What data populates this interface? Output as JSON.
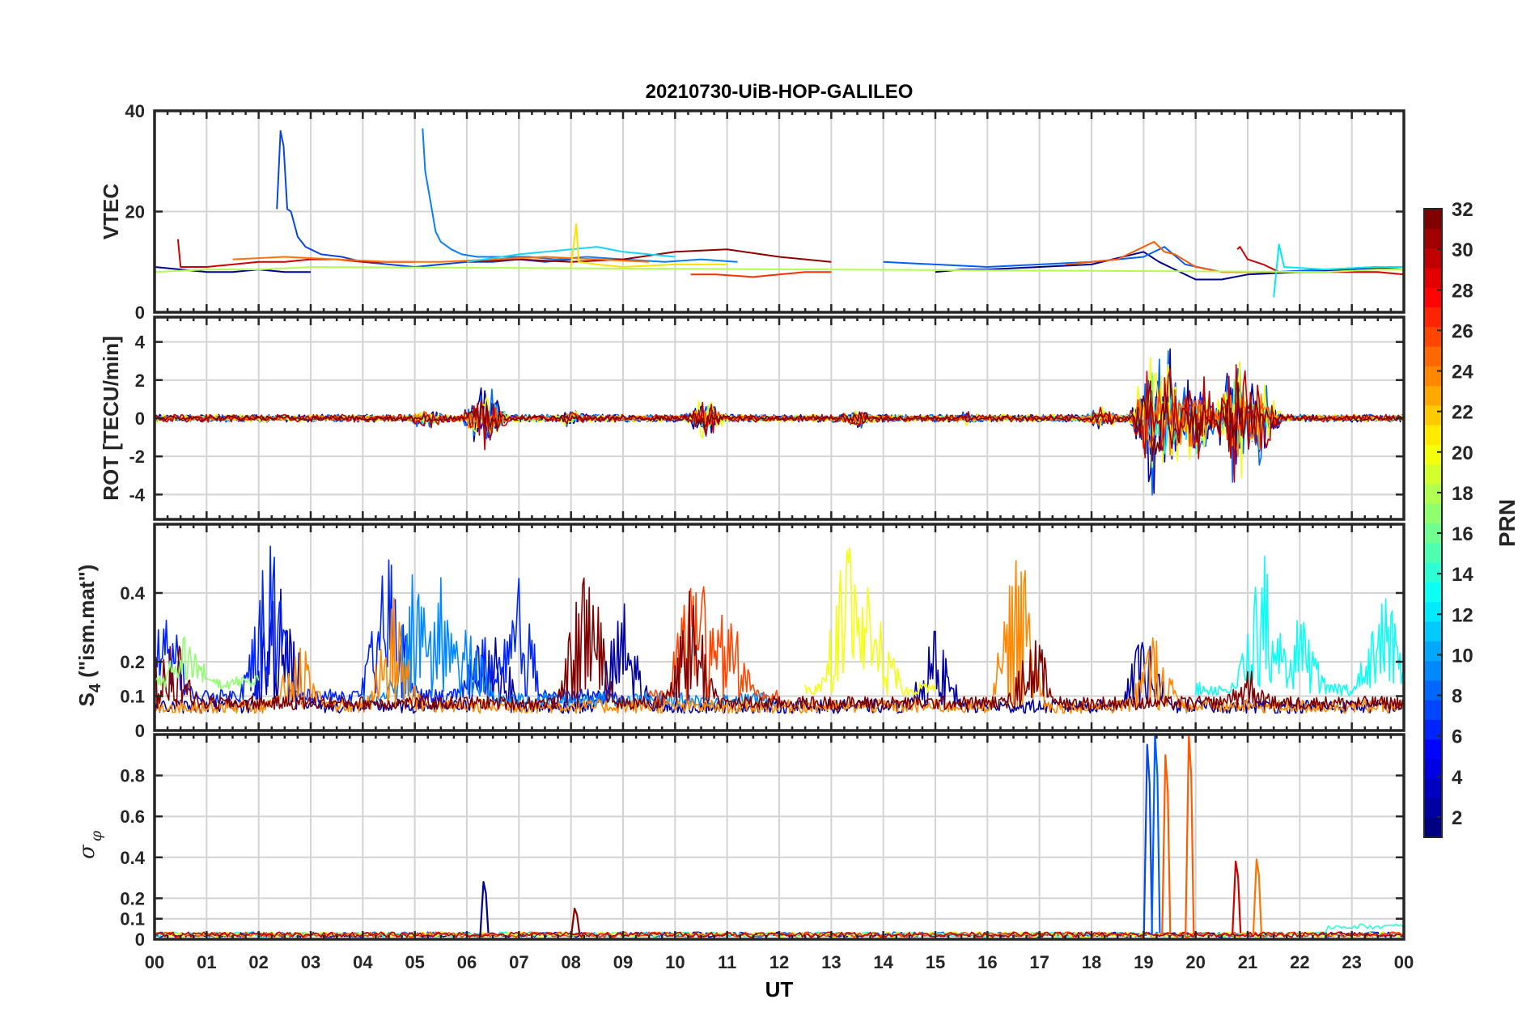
{
  "chart_data": {
    "type": "line",
    "title": "20210730-UiB-HOP-GALILEO",
    "xlabel": "UT",
    "xlim": [
      0,
      24
    ],
    "xtick_labels": [
      "00",
      "01",
      "02",
      "03",
      "04",
      "05",
      "06",
      "07",
      "08",
      "09",
      "10",
      "11",
      "12",
      "13",
      "14",
      "15",
      "16",
      "17",
      "18",
      "19",
      "20",
      "21",
      "22",
      "23",
      "00"
    ],
    "colorbar": {
      "label": "PRN",
      "colormap": "jet",
      "range": [
        1,
        32
      ],
      "tick_values": [
        2,
        4,
        6,
        8,
        10,
        12,
        14,
        16,
        18,
        20,
        22,
        24,
        26,
        28,
        30,
        32
      ],
      "tick_labels": [
        "2",
        "4",
        "6",
        "8",
        "10",
        "12",
        "14",
        "16",
        "18",
        "20",
        "22",
        "24",
        "26",
        "28",
        "30",
        "32"
      ]
    },
    "panels": [
      {
        "id": "vtec",
        "ylabel": "VTEC",
        "ylim": [
          0,
          40
        ],
        "ytick_values": [
          0,
          20,
          40
        ],
        "ytick_labels": [
          "0",
          "20",
          "40"
        ],
        "grid": true,
        "series": [
          {
            "prn": 4,
            "color": "#0a46e0",
            "points": [
              [
                2.35,
                20.5
              ],
              [
                2.42,
                36
              ],
              [
                2.48,
                33
              ],
              [
                2.55,
                20.5
              ],
              [
                2.62,
                20
              ],
              [
                2.75,
                15
              ],
              [
                2.9,
                13
              ],
              [
                3.2,
                11.5
              ],
              [
                3.6,
                11
              ],
              [
                4.0,
                10
              ],
              [
                4.5,
                9.5
              ],
              [
                5.0,
                9
              ],
              [
                5.5,
                9.5
              ],
              [
                6.0,
                10
              ],
              [
                6.5,
                10
              ],
              [
                7.0,
                10.5
              ],
              [
                7.5,
                10
              ],
              [
                8.0,
                10.5
              ]
            ]
          },
          {
            "prn": 8,
            "color": "#0a7ef5",
            "points": [
              [
                5.15,
                36.5
              ],
              [
                5.2,
                28
              ],
              [
                5.3,
                22
              ],
              [
                5.4,
                16
              ],
              [
                5.5,
                14
              ],
              [
                5.7,
                12.5
              ],
              [
                5.9,
                11.5
              ],
              [
                6.2,
                11
              ],
              [
                6.7,
                11
              ],
              [
                7.2,
                11
              ],
              [
                7.7,
                10.5
              ],
              [
                8.3,
                11
              ],
              [
                9.0,
                10.5
              ],
              [
                9.8,
                10
              ],
              [
                10.5,
                10.5
              ],
              [
                11.2,
                10
              ]
            ]
          },
          {
            "prn": 2,
            "color": "#00008f",
            "points": [
              [
                0.0,
                9
              ],
              [
                0.5,
                8.5
              ],
              [
                1.0,
                8
              ],
              [
                1.5,
                8
              ],
              [
                2.0,
                8.5
              ],
              [
                2.5,
                8
              ],
              [
                3.0,
                8
              ]
            ]
          },
          {
            "prn": 30,
            "color": "#cf0000",
            "points": [
              [
                0.45,
                14.5
              ],
              [
                0.5,
                9
              ],
              [
                1.0,
                9
              ],
              [
                1.5,
                9.5
              ],
              [
                2.0,
                10
              ],
              [
                2.5,
                10
              ],
              [
                3.0,
                10.5
              ],
              [
                3.5,
                10.5
              ],
              [
                4.0,
                10
              ],
              [
                4.5,
                10
              ],
              [
                5.0,
                10
              ]
            ]
          },
          {
            "prn": 32,
            "color": "#8f0000",
            "points": [
              [
                6.0,
                10
              ],
              [
                7.0,
                10.5
              ],
              [
                8.0,
                10
              ],
              [
                9.0,
                10.5
              ],
              [
                10.0,
                12
              ],
              [
                11.0,
                12.5
              ],
              [
                12.0,
                11
              ],
              [
                13.0,
                10
              ]
            ]
          },
          {
            "prn": 24,
            "color": "#ff7400",
            "points": [
              [
                1.5,
                10.5
              ],
              [
                2.5,
                11
              ],
              [
                3.5,
                10.5
              ],
              [
                4.5,
                10
              ],
              [
                5.5,
                10
              ],
              [
                6.5,
                10.5
              ],
              [
                7.5,
                11
              ],
              [
                8.5,
                10.5
              ],
              [
                9.5,
                10
              ]
            ]
          },
          {
            "prn": 12,
            "color": "#18d4ff",
            "points": [
              [
                6.0,
                10
              ],
              [
                7.0,
                11.5
              ],
              [
                8.0,
                12.5
              ],
              [
                8.5,
                13
              ],
              [
                9.0,
                12
              ],
              [
                10.0,
                11
              ]
            ]
          },
          {
            "prn": 20,
            "color": "#ffe000",
            "points": [
              [
                8.0,
                9
              ],
              [
                8.1,
                17.5
              ],
              [
                8.15,
                10
              ],
              [
                8.5,
                9.5
              ],
              [
                9.0,
                9
              ],
              [
                10.0,
                9.5
              ],
              [
                11.0,
                9.5
              ]
            ]
          },
          {
            "prn": 28,
            "color": "#ff3000",
            "points": [
              [
                10.3,
                7.5
              ],
              [
                10.8,
                7.5
              ],
              [
                11.5,
                7
              ],
              [
                12.0,
                7.5
              ],
              [
                12.5,
                8
              ],
              [
                13.0,
                8
              ]
            ]
          },
          {
            "prn": 2,
            "color": "#00008f",
            "points": [
              [
                15.0,
                8
              ],
              [
                15.5,
                8.5
              ],
              [
                16.0,
                8.5
              ],
              [
                17.0,
                9
              ],
              [
                18.0,
                9.5
              ],
              [
                19.0,
                12
              ],
              [
                19.3,
                10
              ],
              [
                19.6,
                8.5
              ],
              [
                20.0,
                6.5
              ],
              [
                20.5,
                6.5
              ],
              [
                21.0,
                7.5
              ],
              [
                22.0,
                8
              ],
              [
                23.0,
                8.5
              ],
              [
                24.0,
                9
              ]
            ]
          },
          {
            "prn": 6,
            "color": "#0060ff",
            "points": [
              [
                14.0,
                10
              ],
              [
                15.0,
                9.5
              ],
              [
                16.0,
                9
              ],
              [
                17.0,
                9.5
              ],
              [
                18.0,
                10
              ],
              [
                19.0,
                11
              ],
              [
                19.4,
                13
              ],
              [
                19.8,
                9.5
              ],
              [
                20.5,
                8
              ],
              [
                21.5,
                8
              ],
              [
                22.5,
                8.5
              ],
              [
                23.5,
                9
              ]
            ]
          },
          {
            "prn": 25,
            "color": "#ff5a00",
            "points": [
              [
                17.5,
                9.5
              ],
              [
                18.5,
                10.5
              ],
              [
                19.0,
                13
              ],
              [
                19.2,
                14
              ],
              [
                19.4,
                12
              ],
              [
                19.6,
                11.5
              ],
              [
                20.0,
                9
              ],
              [
                20.5,
                8
              ],
              [
                21.5,
                8
              ],
              [
                22.5,
                8
              ],
              [
                23.5,
                8.5
              ],
              [
                24.0,
                8.5
              ]
            ]
          },
          {
            "prn": 30,
            "color": "#cf0000",
            "points": [
              [
                20.8,
                12.5
              ],
              [
                20.85,
                13
              ],
              [
                21.0,
                10.5
              ],
              [
                21.3,
                9.5
              ],
              [
                21.6,
                8
              ],
              [
                22.5,
                8
              ],
              [
                23.5,
                8
              ],
              [
                24.0,
                7.5
              ]
            ]
          },
          {
            "prn": 13,
            "color": "#00eaf0",
            "points": [
              [
                21.5,
                3
              ],
              [
                21.6,
                13.5
              ],
              [
                21.7,
                9
              ],
              [
                22.5,
                8.5
              ],
              [
                23.5,
                9
              ],
              [
                24.0,
                9
              ]
            ]
          },
          {
            "prn": 18,
            "color": "#b0ff50",
            "points": [
              [
                0.0,
                8
              ],
              [
                1.0,
                8.5
              ],
              [
                2.0,
                8.5
              ],
              [
                3.0,
                9
              ],
              [
                22.5,
                8
              ],
              [
                23.5,
                8.5
              ],
              [
                24.0,
                8.5
              ]
            ]
          }
        ]
      },
      {
        "id": "rot",
        "ylabel": "ROT [TECU/min]",
        "ylim": [
          -5.3,
          5.3
        ],
        "ytick_values": [
          -4,
          -2,
          0,
          2,
          4
        ],
        "ytick_labels": [
          "-4",
          "-2",
          "0",
          "2",
          "4"
        ],
        "grid": true,
        "noise_profile": {
          "base_amplitude": 0.2,
          "bursts": [
            {
              "t": 5.2,
              "amp": 0.8
            },
            {
              "t": 6.35,
              "amp": 2.3
            },
            {
              "t": 8.0,
              "amp": 0.6
            },
            {
              "t": 10.6,
              "amp": 1.4
            },
            {
              "t": 13.5,
              "amp": 0.7
            },
            {
              "t": 15.6,
              "amp": 0.5
            },
            {
              "t": 18.2,
              "amp": 0.8
            },
            {
              "t": 19.2,
              "amp": 4.8
            },
            {
              "t": 19.5,
              "amp": 4.5
            },
            {
              "t": 20.0,
              "amp": 3.6
            },
            {
              "t": 20.8,
              "amp": 4.7
            },
            {
              "t": 21.2,
              "amp": 3.0
            }
          ]
        }
      },
      {
        "id": "s4",
        "ylabel_main": "S",
        "ylabel_sub": "4",
        "ylabel_tail": " (\"ism.mat\")",
        "ylim": [
          0,
          0.6
        ],
        "ytick_values": [
          0,
          0.1,
          0.2,
          0.4
        ],
        "ytick_labels": [
          "0",
          "0.1",
          "0.2",
          "0.4"
        ],
        "grid": true
      },
      {
        "id": "sigma_phi",
        "ylabel_main": "σ",
        "ylabel_sub": "φ",
        "ylim": [
          0,
          1.0
        ],
        "ytick_values": [
          0,
          0.1,
          0.2,
          0.4,
          0.6,
          0.8
        ],
        "ytick_labels": [
          "0",
          "0.1",
          "0.2",
          "0.4",
          "0.6",
          "0.8"
        ],
        "grid": true,
        "spikes": [
          {
            "t": 6.35,
            "v": 0.28,
            "color": "#00008f"
          },
          {
            "t": 8.1,
            "v": 0.15,
            "color": "#8f0000"
          },
          {
            "t": 19.1,
            "v": 0.95,
            "color": "#0a46e0"
          },
          {
            "t": 19.25,
            "v": 1.0,
            "color": "#0060ff"
          },
          {
            "t": 19.45,
            "v": 0.9,
            "color": "#ff5a00"
          },
          {
            "t": 19.9,
            "v": 1.0,
            "color": "#ff5a00"
          },
          {
            "t": 20.8,
            "v": 0.38,
            "color": "#cf0000"
          },
          {
            "t": 21.2,
            "v": 0.39,
            "color": "#ff7400"
          }
        ]
      }
    ]
  }
}
